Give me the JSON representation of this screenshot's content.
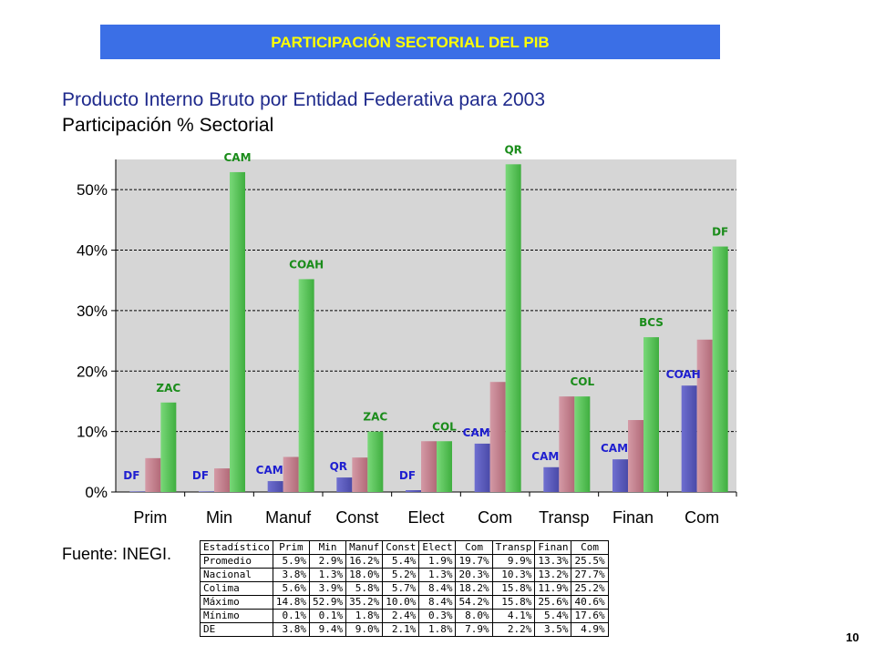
{
  "banner": "PARTICIPACIÓN SECTORIAL DEL PIB",
  "page_number": "10",
  "source": "Fuente: INEGI.",
  "colors": {
    "banner_bg": "#3b6fe6",
    "banner_text": "#ffff00",
    "series_min": "#4a4aa8",
    "series_colima": "#b26a78",
    "series_max": "#3fae3f",
    "label_green": "#1a8c1a",
    "label_blue": "#1f1fd0"
  },
  "chart_data": {
    "type": "bar",
    "title": "Producto Interno Bruto por Entidad Federativa para 2003",
    "subtitle": "Participación % Sectorial",
    "categories": [
      "Prim",
      "Min",
      "Manuf",
      "Const",
      "Elect",
      "Com",
      "Transp",
      "Finan",
      "Com"
    ],
    "series": [
      {
        "values": [
          0.1,
          0.1,
          1.8,
          2.4,
          0.3,
          8.0,
          4.1,
          5.4,
          17.6
        ]
      },
      {
        "values": [
          5.6,
          3.9,
          5.8,
          5.7,
          8.4,
          18.2,
          15.8,
          11.9,
          25.2
        ]
      },
      {
        "values": [
          14.8,
          52.9,
          35.2,
          10.0,
          8.4,
          54.2,
          15.8,
          25.6,
          40.6
        ]
      }
    ],
    "max_labels": [
      "ZAC",
      "CAM",
      "COAH",
      "ZAC",
      "COL",
      "QR",
      "COL",
      "BCS",
      "DF"
    ],
    "min_labels": [
      "DF",
      "DF",
      "CAM",
      "QR",
      "DF",
      "CAM",
      "CAM",
      "CAM",
      "COAH"
    ],
    "ylim": [
      0,
      60
    ],
    "yticks": [
      "0%",
      "10%",
      "20%",
      "30%",
      "40%",
      "50%"
    ],
    "ytick_values": [
      0,
      10,
      20,
      30,
      40,
      50
    ],
    "grid": true
  },
  "table": {
    "headers": [
      "Estadístico",
      "Prim",
      "Min",
      "Manuf",
      "Const",
      "Elect",
      "Com",
      "Transp",
      "Finan",
      "Com"
    ],
    "rows": [
      [
        "Promedio",
        "5.9%",
        "2.9%",
        "16.2%",
        "5.4%",
        "1.9%",
        "19.7%",
        "9.9%",
        "13.3%",
        "25.5%"
      ],
      [
        "Nacional",
        "3.8%",
        "1.3%",
        "18.0%",
        "5.2%",
        "1.3%",
        "20.3%",
        "10.3%",
        "13.2%",
        "27.7%"
      ],
      [
        "Colima",
        "5.6%",
        "3.9%",
        "5.8%",
        "5.7%",
        "8.4%",
        "18.2%",
        "15.8%",
        "11.9%",
        "25.2%"
      ],
      [
        "Máximo",
        "14.8%",
        "52.9%",
        "35.2%",
        "10.0%",
        "8.4%",
        "54.2%",
        "15.8%",
        "25.6%",
        "40.6%"
      ],
      [
        "Mínimo",
        "0.1%",
        "0.1%",
        "1.8%",
        "2.4%",
        "0.3%",
        "8.0%",
        "4.1%",
        "5.4%",
        "17.6%"
      ],
      [
        "DE",
        "3.8%",
        "9.4%",
        "9.0%",
        "2.1%",
        "1.8%",
        "7.9%",
        "2.2%",
        "3.5%",
        "4.9%"
      ]
    ]
  }
}
